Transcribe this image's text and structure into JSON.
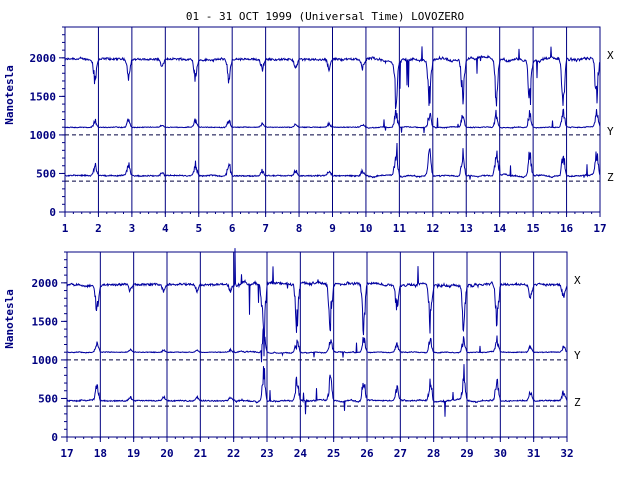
{
  "chart_data": {
    "title": "01 - 31 OCT 1999 (Universal Time) LOVOZERO",
    "colors": {
      "axis": "#000080",
      "trace": "#0000a0",
      "text": "#000080"
    },
    "panels": [
      {
        "type": "line",
        "ylabel": "Nanotesla",
        "ylim": [
          0,
          2400
        ],
        "yticks": [
          "0",
          "500",
          "1000",
          "1500",
          "2000"
        ],
        "xlim": [
          1,
          17
        ],
        "xticks": [
          "1",
          "2",
          "3",
          "4",
          "5",
          "6",
          "7",
          "8",
          "9",
          "10",
          "11",
          "12",
          "13",
          "14",
          "15",
          "16",
          "17"
        ],
        "baselines": [
          1000,
          400
        ],
        "series": [
          {
            "name": "X",
            "base": 1980,
            "label": "X"
          },
          {
            "name": "Y",
            "base": 1100,
            "label": "Y"
          },
          {
            "name": "Z",
            "base": 470,
            "label": "Z"
          }
        ]
      },
      {
        "type": "line",
        "ylabel": "Nanotesla",
        "ylim": [
          0,
          2400
        ],
        "yticks": [
          "0",
          "500",
          "1000",
          "1500",
          "2000"
        ],
        "xlim": [
          17,
          32
        ],
        "xticks": [
          "17",
          "18",
          "19",
          "20",
          "21",
          "22",
          "23",
          "24",
          "25",
          "26",
          "27",
          "28",
          "29",
          "30",
          "31",
          "32"
        ],
        "baselines": [
          1000,
          400
        ],
        "series": [
          {
            "name": "X",
            "base": 1980,
            "label": "X"
          },
          {
            "name": "Y",
            "base": 1100,
            "label": "Y"
          },
          {
            "name": "Z",
            "base": 470,
            "label": "Z"
          }
        ]
      }
    ]
  }
}
